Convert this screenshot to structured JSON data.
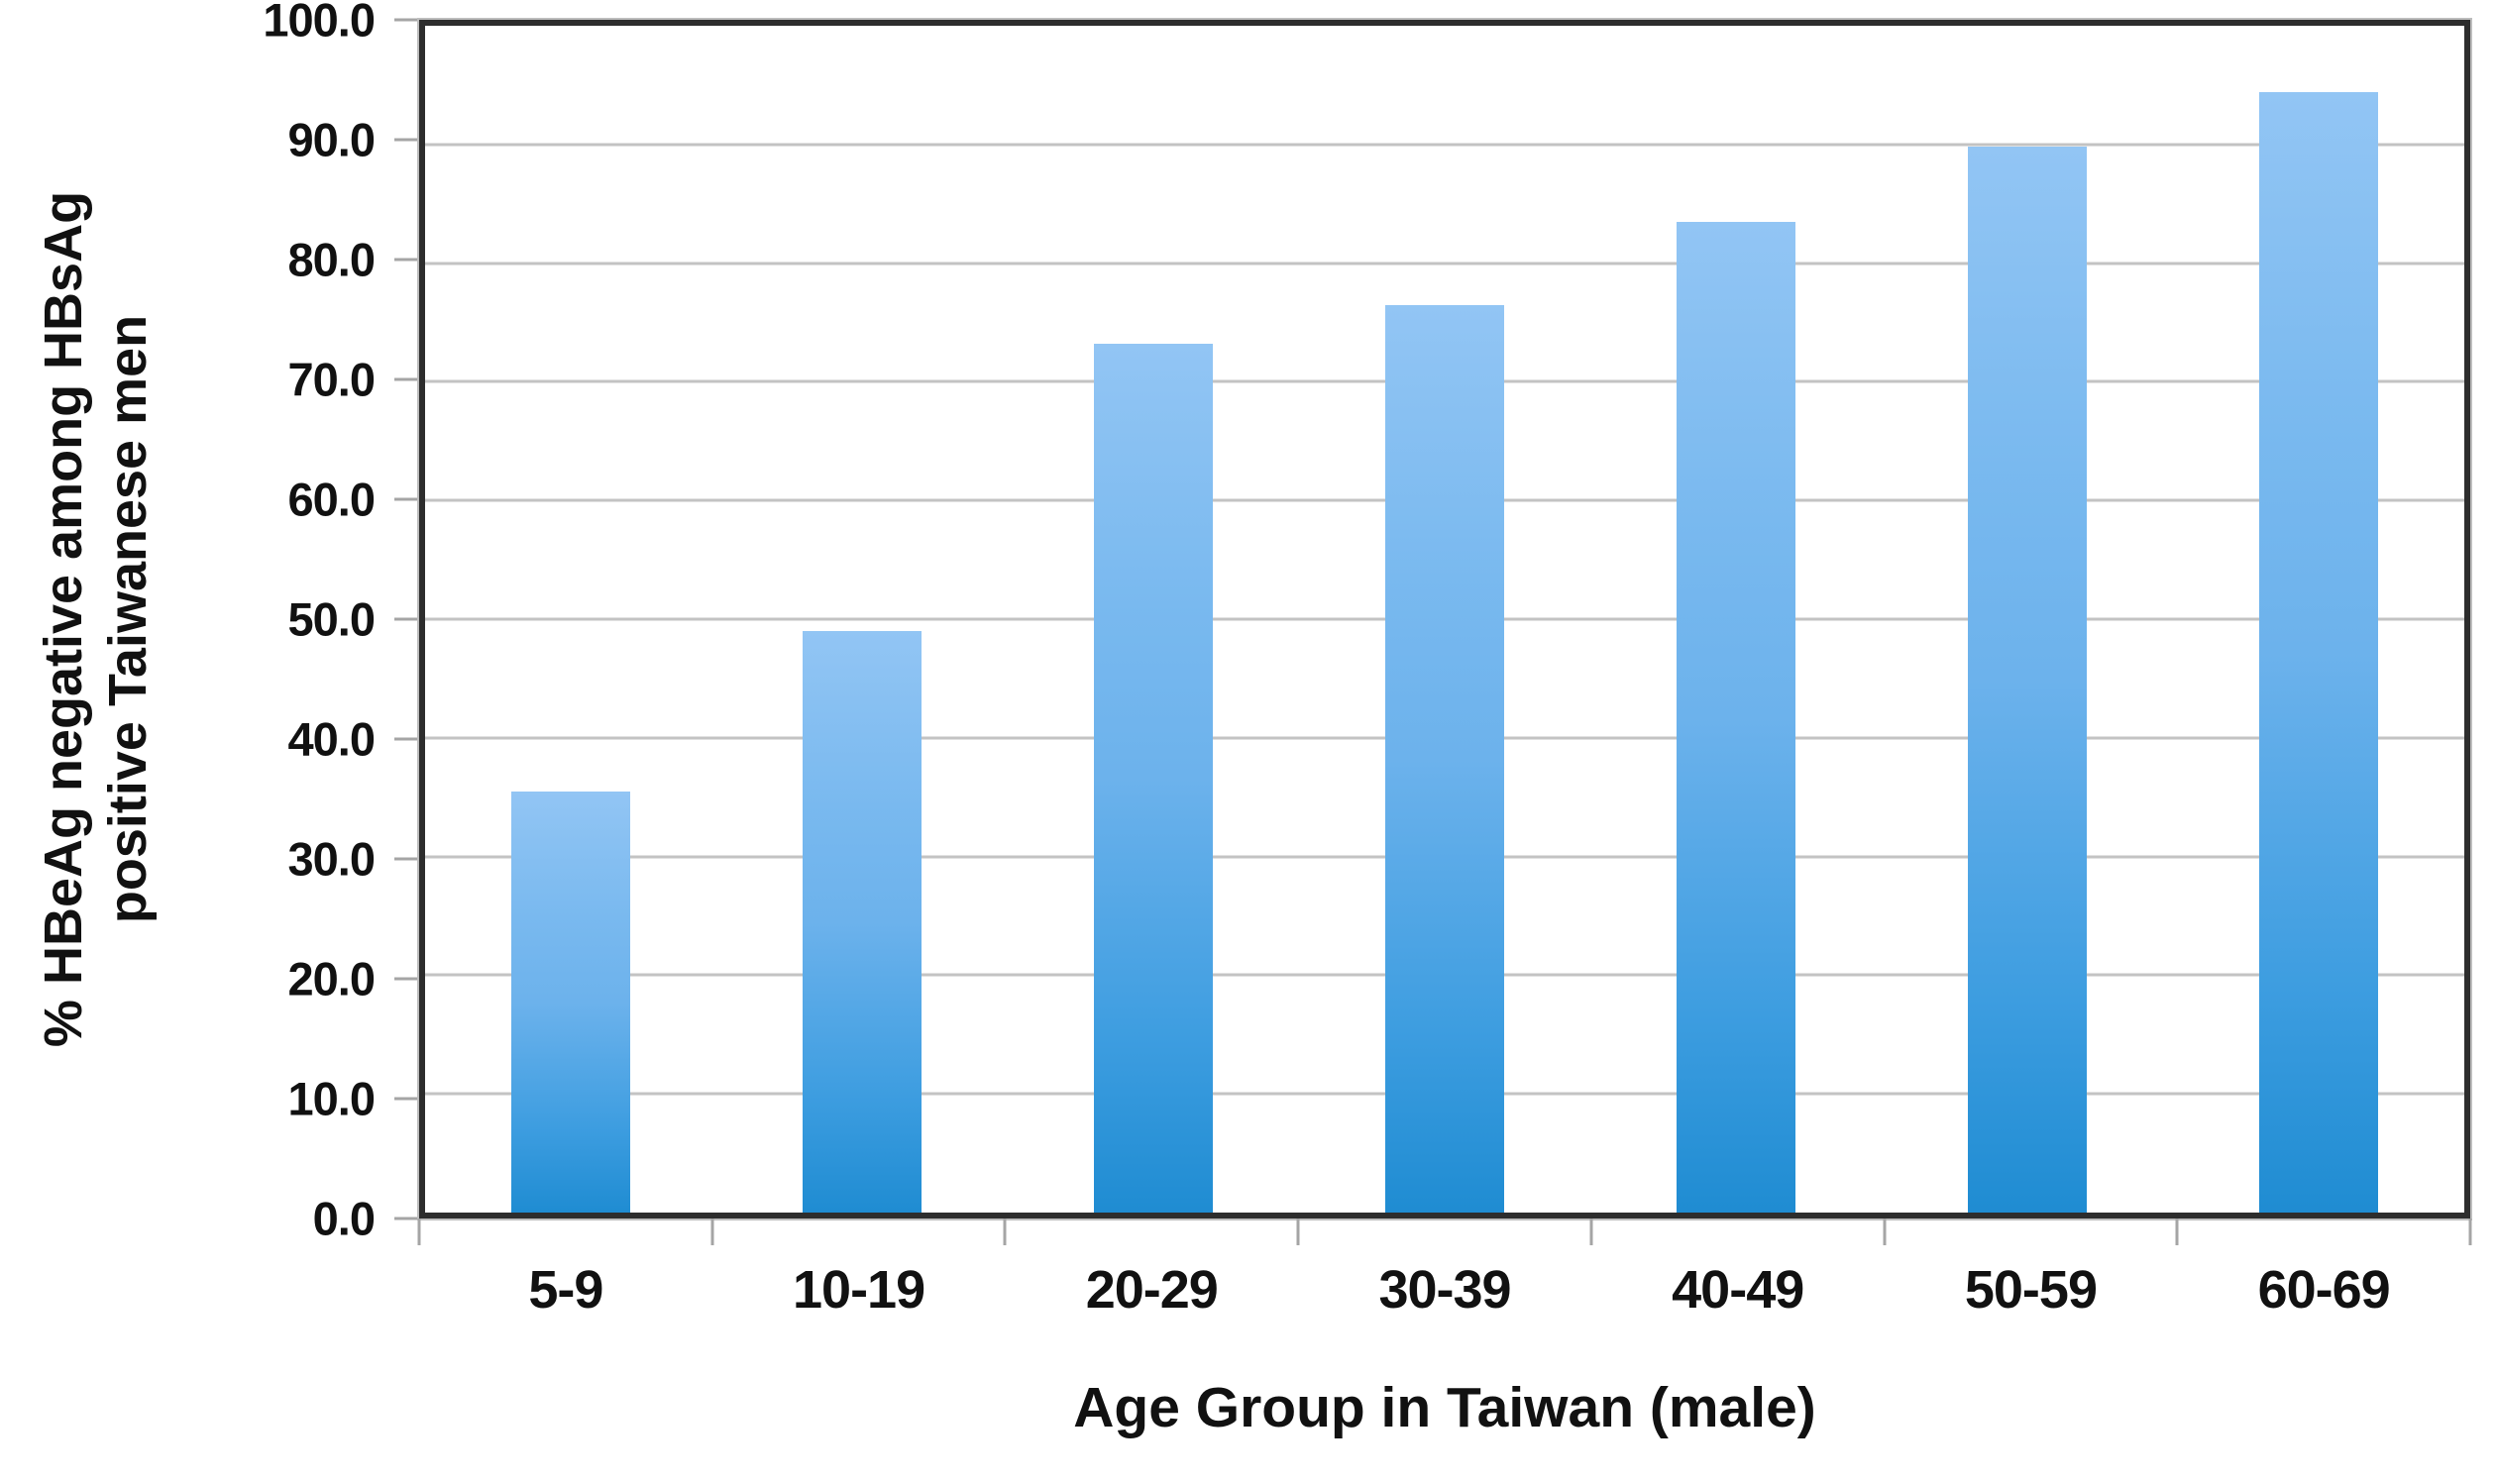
{
  "chart_data": {
    "type": "bar",
    "title": "",
    "categories": [
      "5-9",
      "10-19",
      "20-29",
      "30-39",
      "40-49",
      "50-59",
      "60-69"
    ],
    "values": [
      35.5,
      49.0,
      73.2,
      76.5,
      83.5,
      89.8,
      94.4
    ],
    "xlabel": "Age Group in Taiwan (male)",
    "ylabel": "% HBeAg negative among HBsAg positive Taiwanese men",
    "ylabel_lines": [
      "% HBeAg negative among HBsAg",
      "positive Taiwanese men"
    ],
    "y_tick_labels": [
      "100.0",
      "90.0",
      "80.0",
      "70.0",
      "60.0",
      "50.0",
      "40.0",
      "30.0",
      "20.0",
      "10.0",
      "0.0"
    ],
    "y_tick_values": [
      100,
      90,
      80,
      70,
      60,
      50,
      40,
      30,
      20,
      10,
      0
    ],
    "ylim": [
      0,
      100
    ],
    "grid": true,
    "legend_position": "none",
    "colors": {
      "bar_gradient_top": "#92c5f4",
      "bar_gradient_mid": "#6cb2ec",
      "bar_gradient_bottom": "#1f8cd2",
      "gridline": "#c3c3c3",
      "frame": "#2d2d2d",
      "tick": "#a5a5a5",
      "text": "#111111",
      "background": "#ffffff"
    }
  }
}
